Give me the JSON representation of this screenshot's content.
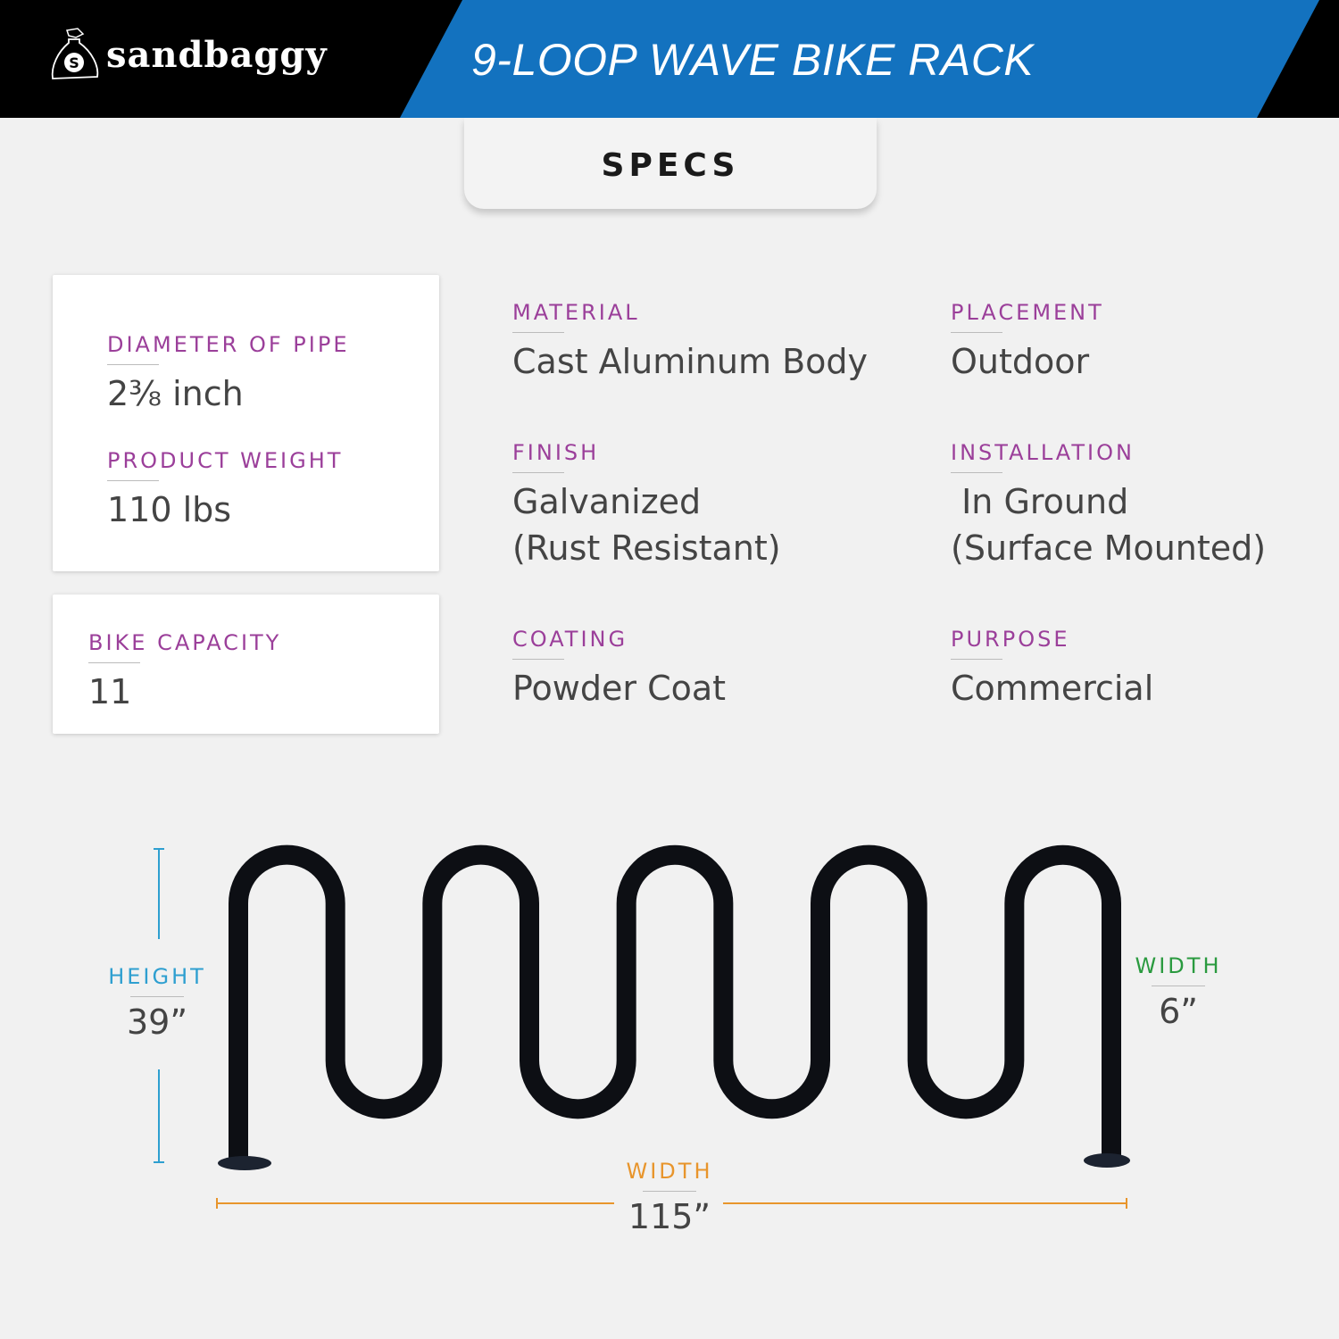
{
  "brand": {
    "name": "sandbaggy",
    "logo_letter": "S"
  },
  "title": "9-LOOP WAVE BIKE RACK",
  "section": "SPECS",
  "cards": [
    {
      "label": "DIAMETER OF PIPE",
      "value": "2⅜ inch"
    },
    {
      "label": "PRODUCT WEIGHT",
      "value": "110 lbs"
    },
    {
      "label": "BIKE CAPACITY",
      "value": "11"
    }
  ],
  "specs": [
    {
      "label": "MATERIAL",
      "value": "Cast Aluminum Body"
    },
    {
      "label": "PLACEMENT",
      "value": "Outdoor"
    },
    {
      "label": "FINISH",
      "value": "Galvanized",
      "value2": "(Rust Resistant)"
    },
    {
      "label": "INSTALLATION",
      "value": " In Ground",
      "value2": "(Surface Mounted)"
    },
    {
      "label": "COATING",
      "value": "Powder Coat"
    },
    {
      "label": "PURPOSE",
      "value": "Commercial"
    }
  ],
  "dimensions": {
    "height": {
      "label": "HEIGHT",
      "value": "39”",
      "color": "#2e9fd0"
    },
    "depth": {
      "label": "WIDTH",
      "value": "6”",
      "color": "#2a9a3f"
    },
    "width": {
      "label": "WIDTH",
      "value": "115”",
      "color": "#e8952c"
    }
  },
  "colors": {
    "header": "#000000",
    "title_band": "#1372bf",
    "label": "#9b3f9a"
  }
}
